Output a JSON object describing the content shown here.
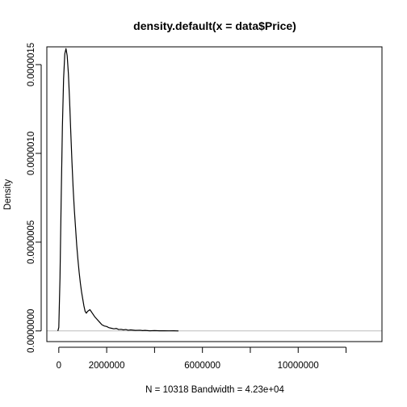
{
  "chart_data": {
    "type": "line",
    "title": "density.default(x = data$Price)",
    "xlabel": "N = 10318   Bandwidth = 4.23e+04",
    "ylabel": "Density",
    "xlim": [
      -500000,
      13500000
    ],
    "ylim": [
      -6e-08,
      1.6e-06
    ],
    "x_ticks": [
      0,
      2000000,
      6000000,
      10000000
    ],
    "x_tick_labels": [
      "0",
      "2000000",
      "6000000",
      "10000000"
    ],
    "x_minor_ticks": [
      4000000,
      8000000,
      12000000
    ],
    "y_ticks": [
      0,
      5e-07,
      1e-06,
      1.5e-06
    ],
    "y_tick_labels": [
      "0.0000000",
      "0.0000005",
      "0.0000010",
      "0.0000015"
    ],
    "zero_line_color": "#bebebe",
    "series": [
      {
        "x": [
          -40000,
          0,
          50000,
          100000,
          150000,
          200000,
          250000,
          300000,
          350000,
          400000,
          450000,
          500000,
          550000,
          600000,
          650000,
          700000,
          750000,
          800000,
          850000,
          900000,
          950000,
          1000000,
          1050000,
          1100000,
          1150000,
          1200000,
          1250000,
          1300000,
          1350000,
          1400000,
          1500000,
          1600000,
          1700000,
          1800000,
          1900000,
          2000000,
          2100000,
          2200000,
          2300000,
          2400000,
          2500000,
          2600000,
          2700000,
          2800000,
          2900000,
          3000000,
          3200000,
          3400000,
          3500000,
          3600000,
          3800000,
          4000000,
          4200000,
          4400000,
          4600000,
          4800000,
          5000000
        ],
        "y": [
          0.0,
          2e-08,
          3e-07,
          7.5e-07,
          1.15e-06,
          1.42e-06,
          1.56e-06,
          1.59e-06,
          1.55e-06,
          1.45e-06,
          1.3e-06,
          1.12e-06,
          9.5e-07,
          8e-07,
          6.8e-07,
          5.8e-07,
          4.8e-07,
          4e-07,
          3.3e-07,
          2.7e-07,
          2.2e-07,
          1.8e-07,
          1.4e-07,
          1.1e-07,
          1e-07,
          1.1e-07,
          1.15e-07,
          1.2e-07,
          1.1e-07,
          1e-07,
          8e-08,
          6.5e-08,
          5e-08,
          3.5e-08,
          2.8e-08,
          2.5e-08,
          1.8e-08,
          1.5e-08,
          1.2e-08,
          1.4e-08,
          8e-09,
          9e-09,
          6e-09,
          8e-09,
          4e-09,
          6e-09,
          3e-09,
          4e-09,
          2e-09,
          3e-09,
          1e-09,
          2e-09,
          1e-09,
          1e-09,
          5e-10,
          1e-09,
          0.0
        ]
      }
    ]
  }
}
